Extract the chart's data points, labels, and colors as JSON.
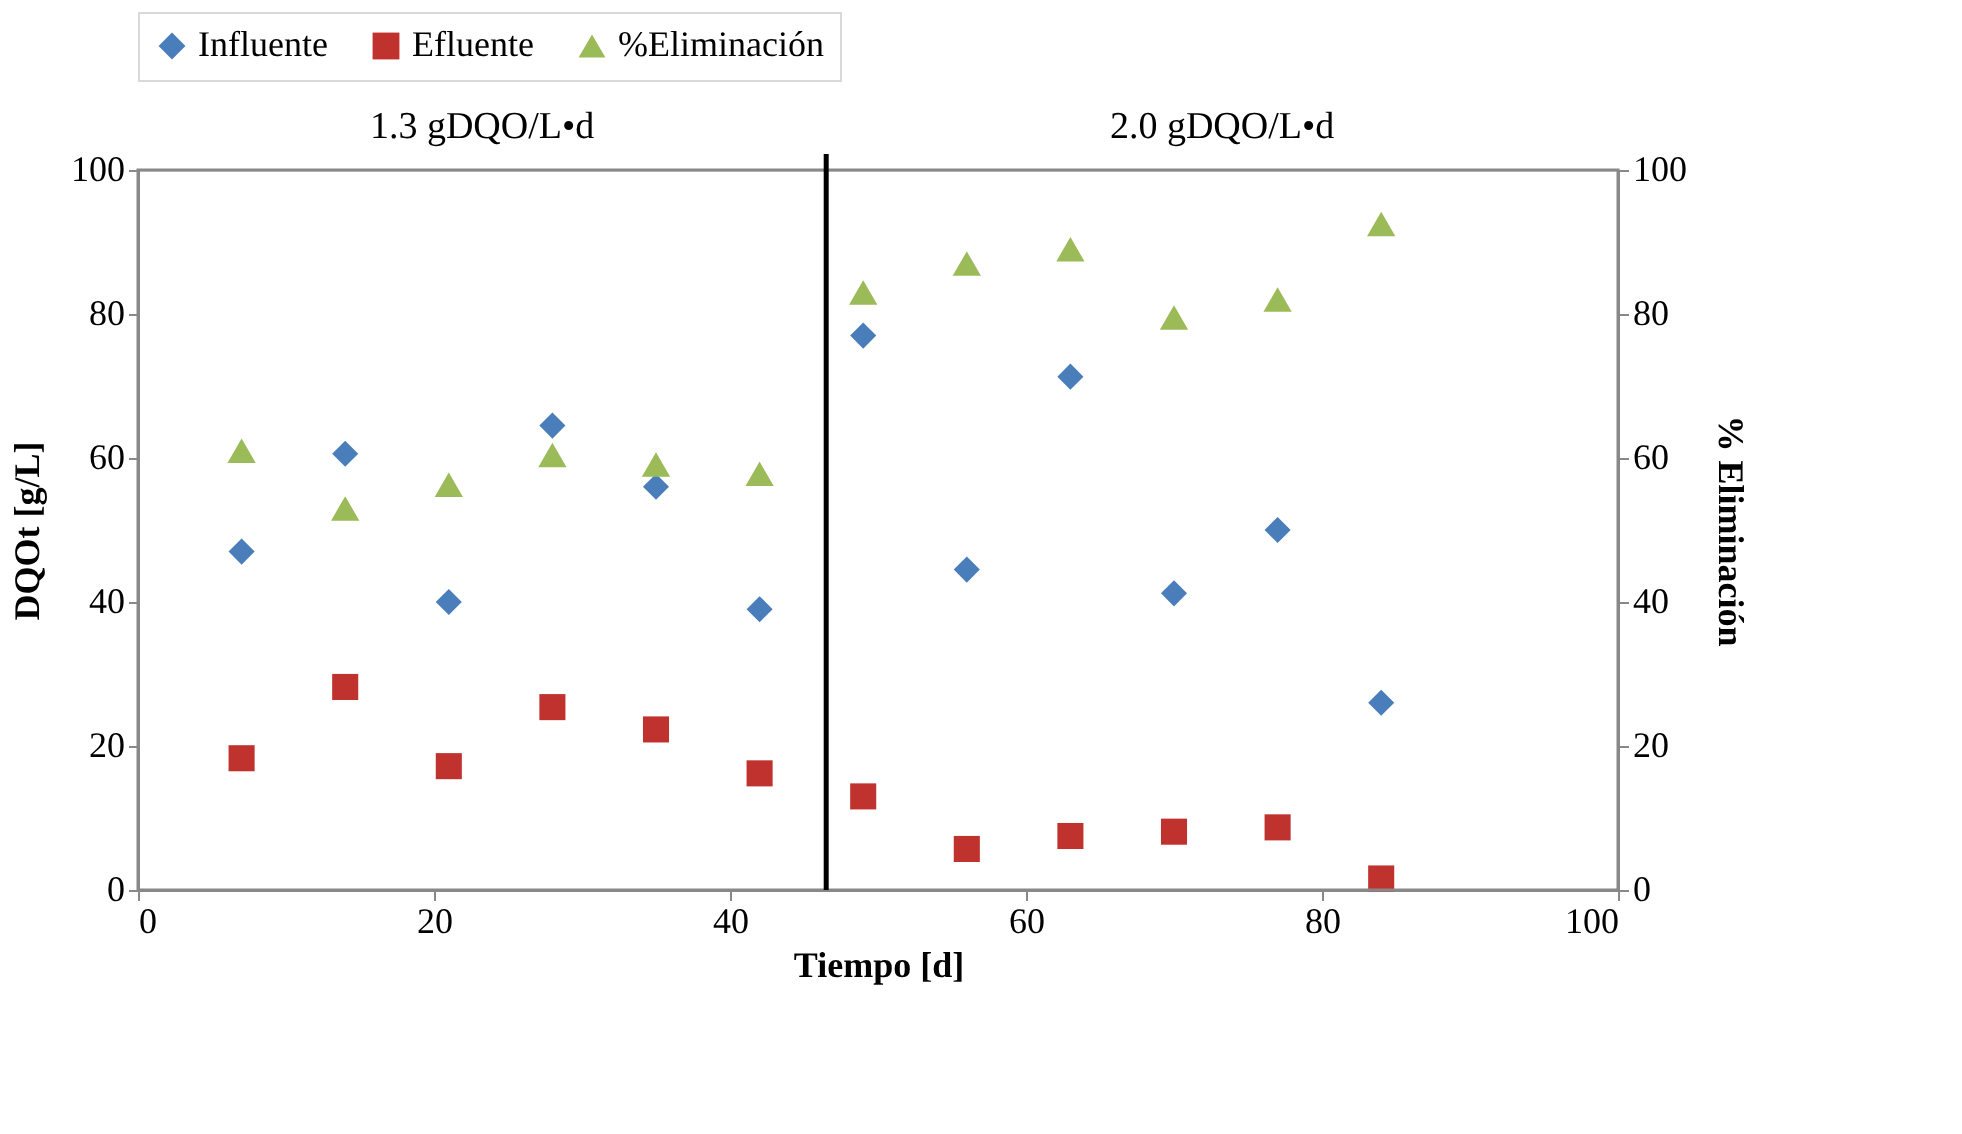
{
  "chart_data": {
    "type": "scatter",
    "xlabel": "Tiempo [d]",
    "ylabel": "DQOt [g/L]",
    "y2label": "% Eliminación",
    "x": [
      7,
      14,
      21,
      28,
      35,
      42,
      49,
      56,
      63,
      70,
      77,
      84
    ],
    "series": [
      {
        "name": "Influente",
        "color": "#4a7ebb",
        "marker": "diamond",
        "values": [
          47,
          60.6,
          40,
          64.5,
          56,
          39,
          77,
          44.5,
          71.3,
          41.2,
          50,
          26
        ]
      },
      {
        "name": "Efluente",
        "color": "#c0322e",
        "marker": "square",
        "values": [
          18.3,
          28.2,
          17.2,
          25.4,
          22.3,
          16.2,
          13,
          5.7,
          7.5,
          8.1,
          8.7,
          1.6
        ]
      },
      {
        "name": "%Eliminación",
        "color": "#9bbb59",
        "marker": "triangle",
        "axis": "y2",
        "values": [
          61,
          53,
          56.3,
          60.4,
          59.1,
          57.8,
          83,
          87,
          89,
          79.5,
          82,
          92.5
        ]
      }
    ],
    "xlim": [
      0,
      100
    ],
    "xticks": [
      0,
      20,
      40,
      60,
      80,
      100
    ],
    "ylim": [
      0,
      100
    ],
    "yticks": [
      0,
      20,
      40,
      60,
      80,
      100
    ],
    "y2lim": [
      0,
      100
    ],
    "y2ticks": [
      0,
      20,
      40,
      60,
      80,
      100
    ],
    "ref_lines": [
      {
        "axis": "x",
        "value": 46.5,
        "color": "#000000"
      }
    ],
    "annotations": [
      "1.3 gDQO/L•d",
      "2.0 gDQO/L•d"
    ],
    "legend": "top",
    "grid": false
  }
}
